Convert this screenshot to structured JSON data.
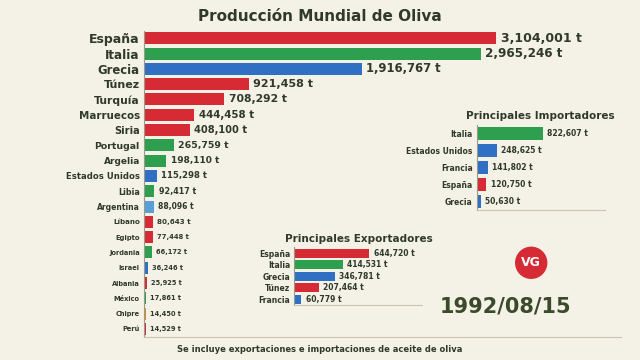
{
  "chart_data": [
    {
      "type": "bar",
      "title": "Producción Mundial de Oliva",
      "orientation": "horizontal",
      "categories": [
        "España",
        "Italia",
        "Grecia",
        "Túnez",
        "Turquía",
        "Marruecos",
        "Siria",
        "Portugal",
        "Argelia",
        "Estados Unidos",
        "Libia",
        "Argentina",
        "Líbano",
        "Egipto",
        "Jordania",
        "Israel",
        "Albania",
        "México",
        "Chipre",
        "Perú"
      ],
      "values": [
        3104001,
        2965246,
        1916767,
        921458,
        708292,
        444458,
        408100,
        265759,
        198110,
        115298,
        92417,
        88096,
        80643,
        77448,
        66172,
        36246,
        25925,
        17861,
        14450,
        14529
      ],
      "value_labels": [
        "3,104,001 t",
        "2,965,246 t",
        "1,916,767 t",
        "921,458 t",
        "708,292 t",
        "444,458 t",
        "408,100 t",
        "265,759 t",
        "198,110 t",
        "115,298 t",
        "92,417 t",
        "88,096 t",
        "80,643 t",
        "77,448 t",
        "66,172 t",
        "36,246 t",
        "25,925 t",
        "17,861 t",
        "14,450 t",
        "14,529 t"
      ],
      "colors": [
        "#d62b35",
        "#2e9e4f",
        "#2f6fc4",
        "#d62b35",
        "#d62b35",
        "#d62b35",
        "#d62b35",
        "#2e9e4f",
        "#2e9e4f",
        "#2f6fc4",
        "#2e9e4f",
        "#5aa0d8",
        "#d62b35",
        "#d62b35",
        "#2e9e4f",
        "#2f6fc4",
        "#d62b35",
        "#2e9e4f",
        "#e08a2a",
        "#d62b35"
      ],
      "xlim": [
        0,
        4200000
      ],
      "xticks": [],
      "grid": false,
      "data_labels": true,
      "tick_labels": "y",
      "annotations": [
        "1992/08/15",
        "VG",
        "Se incluye exportaciones e importaciones de aceite de oliva"
      ]
    },
    {
      "type": "bar",
      "title": "Principales Importadores",
      "orientation": "horizontal",
      "categories": [
        "Italia",
        "Estados Unidos",
        "Francia",
        "España",
        "Grecia"
      ],
      "values": [
        822607,
        248625,
        141802,
        120750,
        50630
      ],
      "value_labels": [
        "822,607 t",
        "248,625 t",
        "141,802 t",
        "120,750 t",
        "50,630 t"
      ],
      "colors": [
        "#2e9e4f",
        "#2f6fc4",
        "#2f6fc4",
        "#d62b35",
        "#2f6fc4"
      ],
      "xlim": [
        0,
        1600000
      ],
      "xticks": [],
      "grid": false,
      "data_labels": true,
      "tick_labels": "y"
    },
    {
      "type": "bar",
      "title": "Principales Exportadores",
      "orientation": "horizontal",
      "categories": [
        "España",
        "Italia",
        "Grecia",
        "Túnez",
        "Francia"
      ],
      "values": [
        644720,
        414531,
        346781,
        207464,
        60779
      ],
      "value_labels": [
        "644,720 t",
        "414,531 t",
        "346,781 t",
        "207,464 t",
        "60,779 t"
      ],
      "colors": [
        "#d62b35",
        "#2e9e4f",
        "#2f6fc4",
        "#d62b35",
        "#2f6fc4"
      ],
      "xlim": [
        0,
        1100000
      ],
      "xticks": [],
      "grid": false,
      "data_labels": true,
      "tick_labels": "y"
    }
  ]
}
